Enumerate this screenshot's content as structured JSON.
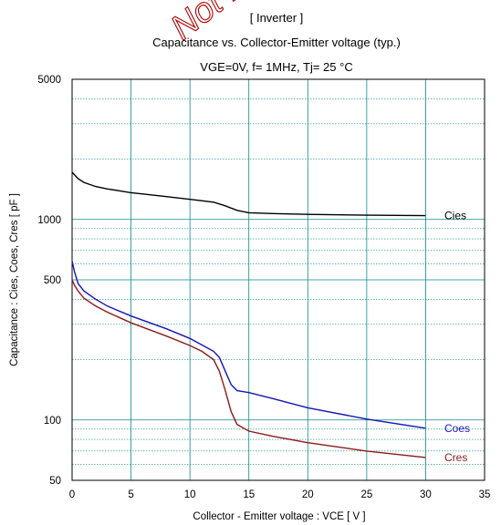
{
  "header": {
    "line1": "[ Inverter ]",
    "line2": "Capacitance  vs.  Collector-Emitter voltage  (typ.)",
    "line3": "VGE=0V,  f= 1MHz,  Tj= 25 °C"
  },
  "watermark": {
    "text": "Not Rec"
  },
  "colors": {
    "grid": "#0a8b8b",
    "frame": "#000000",
    "Cies": "#000000",
    "Coes": "#1414b4",
    "Cres": "#8b1a1a"
  },
  "chart_data": {
    "type": "line",
    "title": "Capacitance  vs.  Collector-Emitter voltage  (typ.)",
    "xlabel": "Collector - Emitter voltage  :  VCE  [ V ]",
    "ylabel": "Capacitance  :  Cies, Coes, Cres  [ pF ]",
    "xlim": [
      0,
      35
    ],
    "ylim": [
      50,
      5000
    ],
    "y_scale": "log",
    "grid": true,
    "x_ticks": [
      0,
      5,
      10,
      15,
      20,
      25,
      30,
      35
    ],
    "x_tick_labels": [
      "0",
      "5",
      "10",
      "15",
      "20",
      "25",
      "30",
      "35"
    ],
    "y_ticks_labeled": [
      50,
      100,
      500,
      1000,
      5000
    ],
    "y_tick_labels": [
      "50",
      "100",
      "500",
      "1000",
      "5000"
    ],
    "y_grid_values": [
      60,
      70,
      80,
      90,
      100,
      200,
      300,
      400,
      500,
      600,
      700,
      800,
      900,
      1000,
      2000,
      3000,
      4000
    ],
    "series": [
      {
        "name": "Cies",
        "x": [
          0,
          0.5,
          1,
          2,
          3,
          4,
          5,
          6,
          8,
          10,
          12,
          13,
          14,
          15,
          17,
          20,
          25,
          30
        ],
        "y": [
          1720,
          1600,
          1530,
          1460,
          1420,
          1390,
          1360,
          1340,
          1300,
          1260,
          1220,
          1170,
          1110,
          1080,
          1070,
          1060,
          1050,
          1045
        ]
      },
      {
        "name": "Coes",
        "x": [
          0,
          0.2,
          0.5,
          1,
          2,
          3,
          5,
          8,
          10,
          12,
          12.5,
          13,
          13.5,
          14,
          15,
          17,
          20,
          25,
          30
        ],
        "y": [
          620,
          550,
          480,
          440,
          400,
          370,
          330,
          285,
          255,
          220,
          205,
          175,
          150,
          140,
          137,
          128,
          115,
          101,
          91
        ]
      },
      {
        "name": "Cres",
        "x": [
          0,
          0.2,
          0.5,
          1,
          2,
          3,
          5,
          8,
          10,
          11,
          12,
          12.5,
          13,
          13.5,
          14,
          15,
          17,
          20,
          25,
          30
        ],
        "y": [
          500,
          470,
          440,
          405,
          370,
          345,
          305,
          262,
          235,
          220,
          200,
          175,
          140,
          110,
          95,
          88,
          83,
          77,
          70,
          65
        ]
      }
    ]
  }
}
